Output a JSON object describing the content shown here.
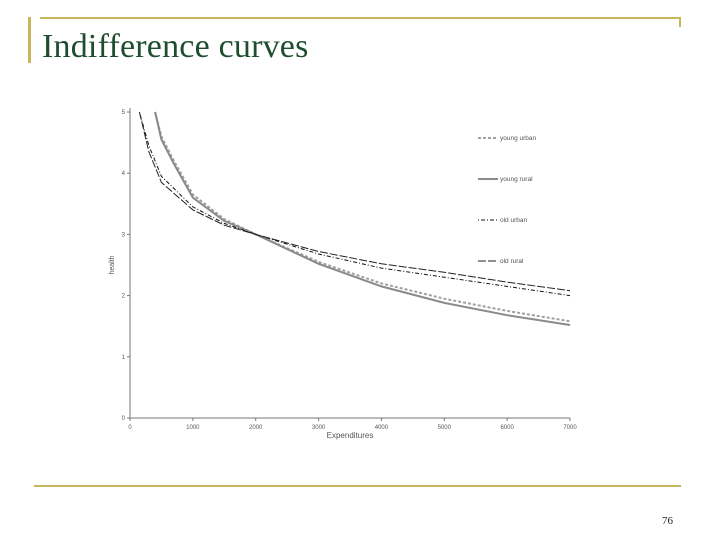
{
  "slide": {
    "title": "Indifference curves",
    "page_number": "76"
  },
  "chart_data": {
    "type": "line",
    "xlabel": "Expenditures",
    "ylabel": "health",
    "xlim": [
      0,
      7000
    ],
    "ylim": [
      0,
      5
    ],
    "x_ticks": [
      0,
      1000,
      2000,
      3000,
      4000,
      5000,
      6000,
      7000
    ],
    "y_ticks": [
      0,
      1,
      2,
      3,
      4,
      5
    ],
    "grid": false,
    "legend_position": "top-right",
    "series": [
      {
        "name": "young urban",
        "style": "dashed",
        "color": "#a0a0a0",
        "x": [
          400,
          500,
          700,
          1000,
          1500,
          2000,
          3000,
          4000,
          5000,
          6000,
          7000
        ],
        "y": [
          5.0,
          4.6,
          4.2,
          3.65,
          3.25,
          3.0,
          2.55,
          2.2,
          1.95,
          1.75,
          1.58
        ]
      },
      {
        "name": "young rural",
        "style": "solid",
        "color": "#8a8a8a",
        "x": [
          400,
          500,
          700,
          1000,
          1500,
          2000,
          3000,
          4000,
          5000,
          6000,
          7000
        ],
        "y": [
          5.0,
          4.55,
          4.15,
          3.6,
          3.22,
          3.0,
          2.52,
          2.15,
          1.88,
          1.68,
          1.52
        ]
      },
      {
        "name": "old urban",
        "style": "dotdash",
        "color": "#111111",
        "x": [
          150,
          300,
          500,
          1000,
          1500,
          2000,
          3000,
          4000,
          5000,
          6000,
          7000
        ],
        "y": [
          5.0,
          4.45,
          3.95,
          3.45,
          3.18,
          3.0,
          2.68,
          2.45,
          2.3,
          2.15,
          2.0
        ]
      },
      {
        "name": "old rural",
        "style": "longdash",
        "color": "#222222",
        "x": [
          150,
          300,
          500,
          1000,
          1500,
          2000,
          3000,
          4000,
          5000,
          6000,
          7000
        ],
        "y": [
          5.0,
          4.35,
          3.85,
          3.4,
          3.15,
          3.0,
          2.72,
          2.52,
          2.38,
          2.22,
          2.08
        ]
      }
    ]
  }
}
